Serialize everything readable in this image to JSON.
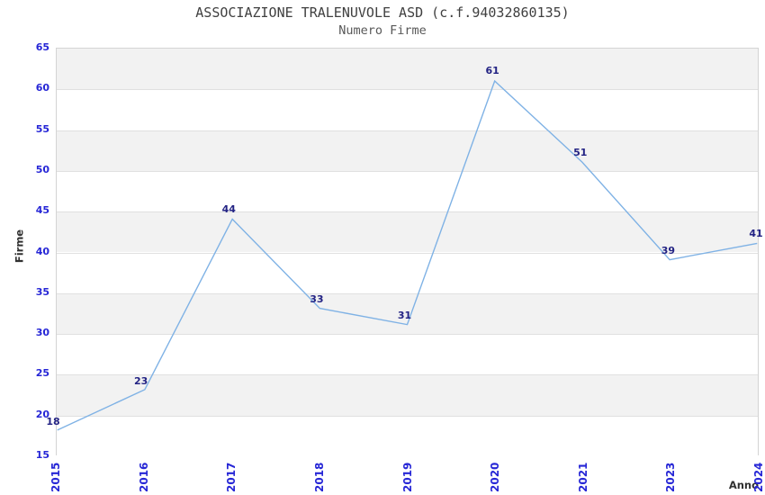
{
  "chart_data": {
    "type": "line",
    "title": "ASSOCIAZIONE TRALENUVOLE ASD (c.f.94032860135)",
    "subtitle": "Numero Firme",
    "xlabel": "Anno",
    "ylabel": "Firme",
    "categories": [
      "2015",
      "2016",
      "2017",
      "2018",
      "2019",
      "2020",
      "2021",
      "2023",
      "2024"
    ],
    "values": [
      18,
      23,
      44,
      33,
      31,
      61,
      51,
      39,
      41
    ],
    "point_labels": [
      "18",
      "23",
      "44",
      "33",
      "31",
      "61",
      "51",
      "39",
      "41"
    ],
    "ylim": [
      15,
      65
    ],
    "ytick_step": 5,
    "yticks": [
      65,
      60,
      55,
      50,
      45,
      40,
      35,
      30,
      25,
      20,
      15
    ],
    "grid": "horizontal-bands",
    "legend": "none",
    "colors": {
      "line": "#7fb2e5",
      "point_label": "#232384",
      "tick_label": "#2626d6",
      "band": "#f2f2f2",
      "band_alt": "#ffffff",
      "gridline": "#e0e0e0",
      "border": "#d4d4d4",
      "title": "#404040",
      "subtitle": "#585858",
      "axis_label": "#303030"
    }
  }
}
